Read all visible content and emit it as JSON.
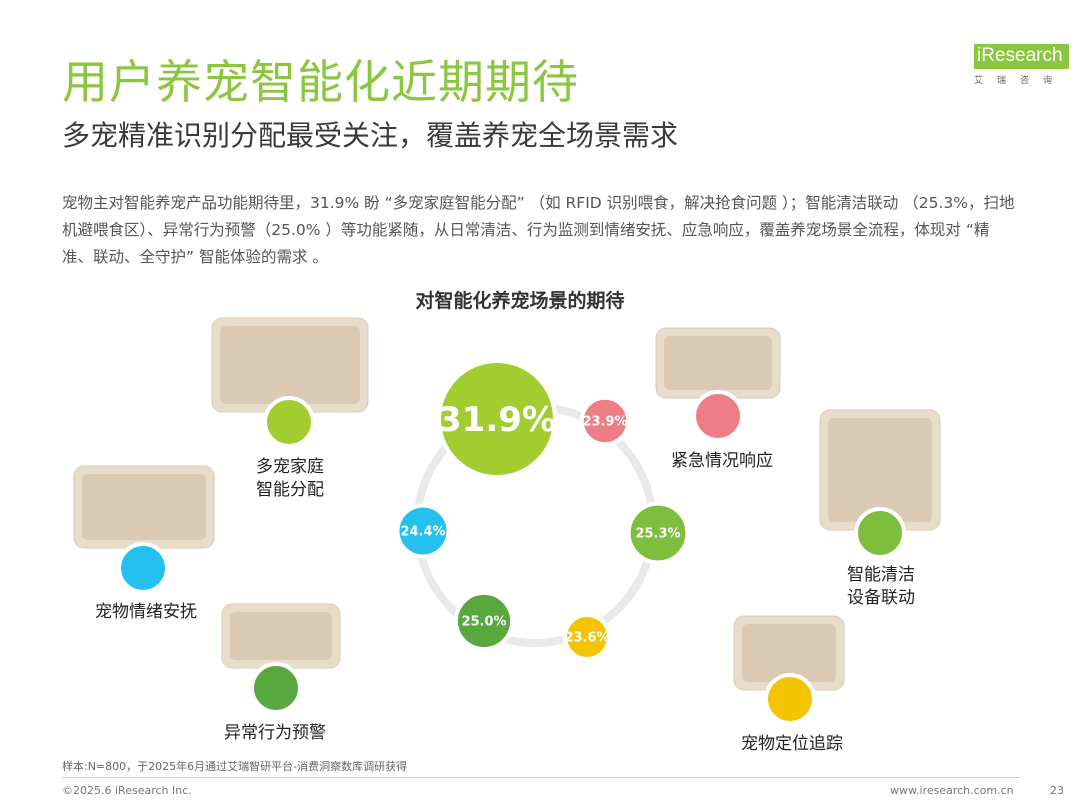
{
  "header": {
    "title": "用户养宠智能化近期期待",
    "subtitle": "多宠精准识别分配最受关注，覆盖养宠全场景需求",
    "logo_main": "iResearch",
    "logo_sub": "艾瑞咨询"
  },
  "description": "宠物主对智能养宠产品功能期待里，31.9% 盼 “多宠家庭智能分配” （如 RFID 识别喂食，解决抢食问题 ）；智能清洁联动 （25.3%，扫地机避喂食区）、异常行为预警（25.0% ）等功能紧随，从日常清洁、行为监测到情绪安抚、应急响应，覆盖养宠场景全流程，体现对 “精准、联动、全守护” 智能体验的需求 。",
  "chart_data": {
    "type": "bubble",
    "title": "对智能化养宠场景的期待",
    "unit": "%",
    "items": [
      {
        "label_lines": [
          "多宠家庭",
          "智能分配"
        ],
        "value": 31.9,
        "value_text": "31.9%",
        "color": "#a3cc2e"
      },
      {
        "label_lines": [
          "紧急情况响应"
        ],
        "value": 23.9,
        "value_text": "23.9%",
        "color": "#ef7d87"
      },
      {
        "label_lines": [
          "智能清洁",
          "设备联动"
        ],
        "value": 25.3,
        "value_text": "25.3%",
        "color": "#7dbe3c"
      },
      {
        "label_lines": [
          "宠物定位追踪"
        ],
        "value": 23.6,
        "value_text": "23.6%",
        "color": "#f5c400"
      },
      {
        "label_lines": [
          "异常行为预警"
        ],
        "value": 25.0,
        "value_text": "25.0%",
        "color": "#58a83e"
      },
      {
        "label_lines": [
          "宠物情绪安抚"
        ],
        "value": 24.4,
        "value_text": "24.4%",
        "color": "#25c1ee"
      }
    ]
  },
  "footer": {
    "note": "样本:N=800，于2025年6月通过艾瑞智研平台-消费洞察数库调研获得",
    "copyright": "©2025.6 iResearch Inc.",
    "website": "www.iresearch.com.cn",
    "page": "23"
  }
}
